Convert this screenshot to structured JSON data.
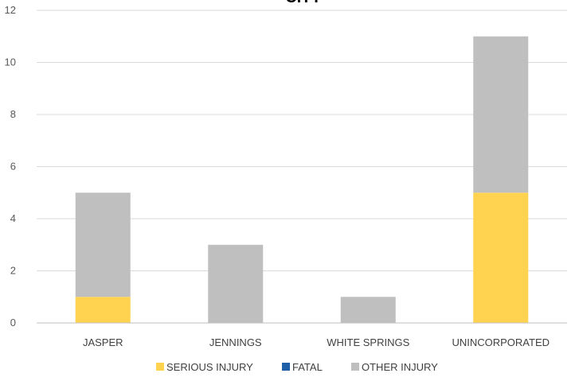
{
  "chart_data": {
    "type": "bar",
    "stacked": true,
    "title": "CITY",
    "xlabel": "",
    "ylabel": "",
    "categories": [
      "JASPER",
      "JENNINGS",
      "WHITE SPRINGS",
      "UNINCORPORATED"
    ],
    "series": [
      {
        "name": "SERIOUS INJURY",
        "values": [
          1,
          0,
          0,
          5
        ],
        "color": "#FFD34F"
      },
      {
        "name": "FATAL",
        "values": [
          0,
          0,
          0,
          0
        ],
        "color": "#1F5FA8"
      },
      {
        "name": "OTHER INJURY",
        "values": [
          4,
          3,
          1,
          6
        ],
        "color": "#BFBFBF"
      }
    ],
    "ylim": [
      0,
      12
    ],
    "yticks": [
      0,
      2,
      4,
      6,
      8,
      10,
      12
    ],
    "grid": true,
    "legend": "bottom"
  }
}
